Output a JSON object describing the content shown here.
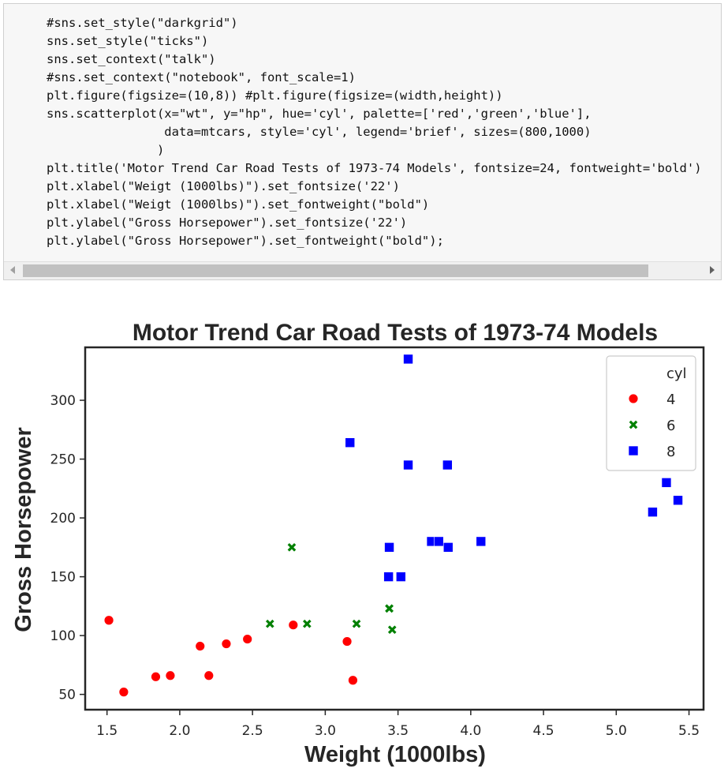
{
  "code_cell": {
    "lines": [
      "#sns.set_style(\"darkgrid\")",
      "sns.set_style(\"ticks\")",
      "sns.set_context(\"talk\")",
      "#sns.set_context(\"notebook\", font_scale=1)",
      "plt.figure(figsize=(10,8)) #plt.figure(figsize=(width,height))",
      "sns.scatterplot(x=\"wt\", y=\"hp\", hue='cyl', palette=['red','green','blue'],",
      "                data=mtcars, style='cyl', legend='brief', sizes=(800,1000)",
      "               )",
      "plt.title('Motor Trend Car Road Tests of 1973-74 Models', fontsize=24, fontweight='bold')",
      "plt.xlabel(\"Weigt (1000lbs)\").set_fontsize('22')",
      "plt.xlabel(\"Weigt (1000lbs)\").set_fontweight(\"bold\")",
      "plt.ylabel(\"Gross Horsepower\").set_fontsize('22')",
      "plt.ylabel(\"Gross Horsepower\").set_fontweight(\"bold\");"
    ]
  },
  "chart_data": {
    "type": "scatter",
    "title": "Motor Trend Car Road Tests of 1973-74 Models",
    "xlabel": "Weight (1000lbs)",
    "ylabel": "Gross Horsepower",
    "xlim": [
      1.35,
      5.6
    ],
    "ylim": [
      37,
      345
    ],
    "xticks": [
      "1.5",
      "2.0",
      "2.5",
      "3.0",
      "3.5",
      "4.0",
      "4.5",
      "5.0",
      "5.5"
    ],
    "yticks": [
      "50",
      "100",
      "150",
      "200",
      "250",
      "300"
    ],
    "grid": false,
    "legend": {
      "title": "cyl",
      "placement": "top-right"
    },
    "series": [
      {
        "name": "4",
        "color": "#ff0000",
        "marker": "circle",
        "points": [
          [
            1.513,
            113
          ],
          [
            1.615,
            52
          ],
          [
            1.835,
            65
          ],
          [
            1.935,
            66
          ],
          [
            2.14,
            91
          ],
          [
            2.2,
            66
          ],
          [
            2.32,
            93
          ],
          [
            2.465,
            97
          ],
          [
            2.78,
            109
          ],
          [
            3.15,
            95
          ],
          [
            3.19,
            62
          ]
        ]
      },
      {
        "name": "6",
        "color": "#008000",
        "marker": "x",
        "points": [
          [
            2.62,
            110
          ],
          [
            2.875,
            110
          ],
          [
            2.77,
            175
          ],
          [
            3.215,
            110
          ],
          [
            3.44,
            123
          ],
          [
            3.46,
            105
          ],
          [
            3.44,
            123
          ]
        ]
      },
      {
        "name": "8",
        "color": "#0000ff",
        "marker": "square",
        "points": [
          [
            3.17,
            264
          ],
          [
            3.57,
            335
          ],
          [
            3.57,
            245
          ],
          [
            3.84,
            245
          ],
          [
            3.44,
            175
          ],
          [
            3.73,
            180
          ],
          [
            3.78,
            180
          ],
          [
            3.845,
            175
          ],
          [
            4.07,
            180
          ],
          [
            3.435,
            150
          ],
          [
            3.52,
            150
          ],
          [
            5.25,
            205
          ],
          [
            5.345,
            230
          ],
          [
            5.424,
            215
          ]
        ]
      }
    ]
  }
}
